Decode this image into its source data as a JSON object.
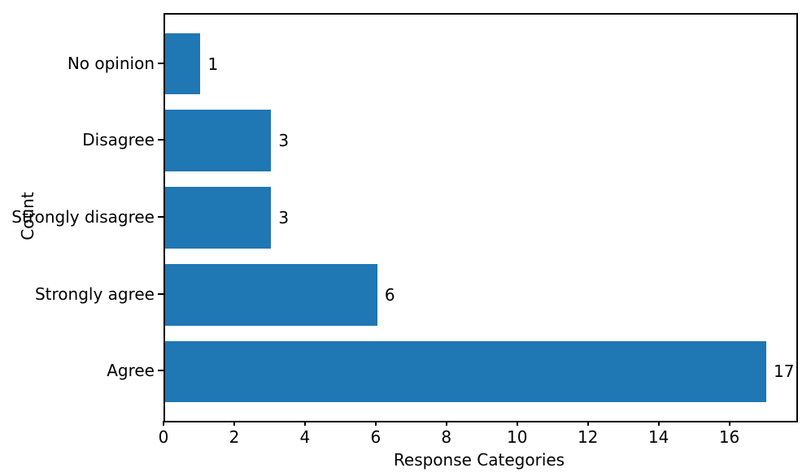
{
  "chart_data": {
    "type": "bar",
    "orientation": "horizontal",
    "title": "",
    "xlabel": "Response Categories",
    "ylabel": "Count",
    "categories": [
      "No opinion",
      "Disagree",
      "Strongly disagree",
      "Strongly agree",
      "Agree"
    ],
    "values": [
      1,
      3,
      3,
      6,
      17
    ],
    "value_labels": [
      "1",
      "3",
      "3",
      "6",
      "17"
    ],
    "x_ticks": [
      0,
      2,
      4,
      6,
      8,
      10,
      12,
      14,
      16
    ],
    "xlim": [
      0,
      17.85
    ],
    "grid": false,
    "legend": null,
    "bar_color": "#1f77b4",
    "spine_color": "#000000",
    "text_color": "#000000",
    "background_color": "#ffffff"
  }
}
